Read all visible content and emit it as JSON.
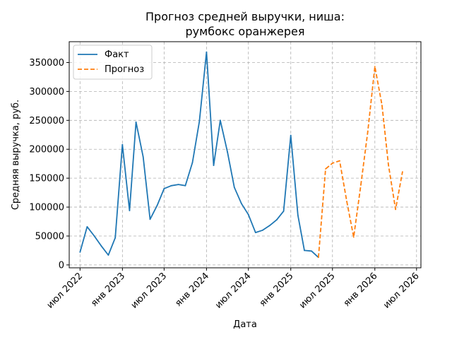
{
  "chart_data": {
    "type": "line",
    "title_line1": "Прогноз средней выручки, ниша:",
    "title_line2": "румбокс оранжерея",
    "xlabel": "Дата",
    "ylabel": "Средняя выручка, руб.",
    "x_ticks": [
      {
        "date": "2022-07-01",
        "label": "июл 2022"
      },
      {
        "date": "2023-01-01",
        "label": "янв 2023"
      },
      {
        "date": "2023-07-01",
        "label": "июл 2023"
      },
      {
        "date": "2024-01-01",
        "label": "янв 2024"
      },
      {
        "date": "2024-07-01",
        "label": "июл 2024"
      },
      {
        "date": "2025-01-01",
        "label": "янв 2025"
      },
      {
        "date": "2025-07-01",
        "label": "июл 2025"
      },
      {
        "date": "2026-01-01",
        "label": "янв 2026"
      },
      {
        "date": "2026-07-01",
        "label": "июл 2026"
      }
    ],
    "y_ticks": [
      0,
      50000,
      100000,
      150000,
      200000,
      250000,
      300000,
      350000
    ],
    "xlim": [
      "2022-05-15",
      "2026-07-20"
    ],
    "ylim": [
      -5000,
      386000
    ],
    "grid": true,
    "legend_position": "top-left",
    "series": [
      {
        "name": "Факт",
        "color": "#1f77b4",
        "style": "solid",
        "points": [
          {
            "x": "2022-07-01",
            "y": 22000
          },
          {
            "x": "2022-08-01",
            "y": 66000
          },
          {
            "x": "2022-09-01",
            "y": 50000
          },
          {
            "x": "2022-10-01",
            "y": 33000
          },
          {
            "x": "2022-11-01",
            "y": 17000
          },
          {
            "x": "2022-12-01",
            "y": 47000
          },
          {
            "x": "2023-01-01",
            "y": 208000
          },
          {
            "x": "2023-02-01",
            "y": 94000
          },
          {
            "x": "2023-03-01",
            "y": 247000
          },
          {
            "x": "2023-04-01",
            "y": 187000
          },
          {
            "x": "2023-05-01",
            "y": 79000
          },
          {
            "x": "2023-06-01",
            "y": 103000
          },
          {
            "x": "2023-07-01",
            "y": 132000
          },
          {
            "x": "2023-08-01",
            "y": 137000
          },
          {
            "x": "2023-09-01",
            "y": 139000
          },
          {
            "x": "2023-10-01",
            "y": 137000
          },
          {
            "x": "2023-11-01",
            "y": 177000
          },
          {
            "x": "2023-12-01",
            "y": 248000
          },
          {
            "x": "2024-01-01",
            "y": 368000
          },
          {
            "x": "2024-02-01",
            "y": 172000
          },
          {
            "x": "2024-03-01",
            "y": 250000
          },
          {
            "x": "2024-04-01",
            "y": 195000
          },
          {
            "x": "2024-05-01",
            "y": 134000
          },
          {
            "x": "2024-06-01",
            "y": 106000
          },
          {
            "x": "2024-07-01",
            "y": 87000
          },
          {
            "x": "2024-08-01",
            "y": 56000
          },
          {
            "x": "2024-09-01",
            "y": 60000
          },
          {
            "x": "2024-10-01",
            "y": 68000
          },
          {
            "x": "2024-11-01",
            "y": 78000
          },
          {
            "x": "2024-12-01",
            "y": 93000
          },
          {
            "x": "2025-01-01",
            "y": 224000
          },
          {
            "x": "2025-02-01",
            "y": 86000
          },
          {
            "x": "2025-03-01",
            "y": 25000
          },
          {
            "x": "2025-04-01",
            "y": 24000
          },
          {
            "x": "2025-05-01",
            "y": 13000
          }
        ]
      },
      {
        "name": "Прогноз",
        "color": "#ff7f0e",
        "style": "dashed",
        "points": [
          {
            "x": "2025-05-01",
            "y": 13000
          },
          {
            "x": "2025-06-01",
            "y": 166000
          },
          {
            "x": "2025-07-01",
            "y": 176000
          },
          {
            "x": "2025-08-01",
            "y": 180000
          },
          {
            "x": "2025-09-01",
            "y": 110000
          },
          {
            "x": "2025-10-01",
            "y": 48000
          },
          {
            "x": "2025-11-01",
            "y": 138000
          },
          {
            "x": "2025-12-01",
            "y": 230000
          },
          {
            "x": "2026-01-01",
            "y": 343000
          },
          {
            "x": "2026-02-01",
            "y": 276000
          },
          {
            "x": "2026-03-01",
            "y": 173000
          },
          {
            "x": "2026-04-01",
            "y": 96000
          },
          {
            "x": "2026-05-01",
            "y": 161000
          }
        ]
      }
    ]
  }
}
